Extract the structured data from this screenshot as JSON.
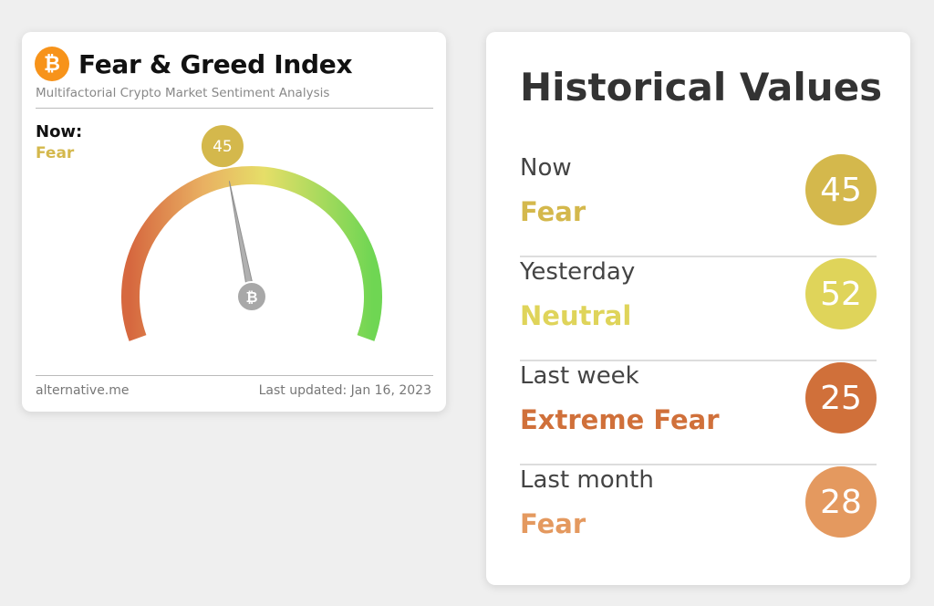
{
  "widget": {
    "title": "Fear & Greed Index",
    "subtitle": "Multifactorial Crypto Market Sentiment Analysis",
    "now_label": "Now:",
    "now_classification": "Fear",
    "value": "45",
    "value_number": 45,
    "logo_icon": "bitcoin-icon",
    "footer_source": "alternative.me",
    "footer_updated": "Last updated: Jan 16, 2023",
    "colors": {
      "bitcoin_orange": "#f7931a",
      "fear": "#d4b84c",
      "needle": "#a8a8a8"
    }
  },
  "history": {
    "title": "Historical Values",
    "rows": [
      {
        "label": "Now",
        "classification": "Fear",
        "value": "45",
        "color": "#d4b84c"
      },
      {
        "label": "Yesterday",
        "classification": "Neutral",
        "value": "52",
        "color": "#dfd45a"
      },
      {
        "label": "Last week",
        "classification": "Extreme Fear",
        "value": "25",
        "color": "#d0703a"
      },
      {
        "label": "Last month",
        "classification": "Fear",
        "value": "28",
        "color": "#e4995f"
      }
    ]
  }
}
